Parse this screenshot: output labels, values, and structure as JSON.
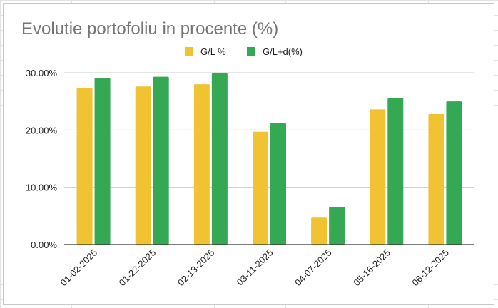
{
  "chart_data": {
    "type": "bar",
    "title": "Evolutie portofoliu in procente (%)",
    "categories": [
      "01-02-2025",
      "01-22-2025",
      "02-13-2025",
      "03-11-2025",
      "04-07-2025",
      "05-16-2025",
      "06-12-2025"
    ],
    "series": [
      {
        "name": "G/L %",
        "color": "#f1c232",
        "values": [
          27.3,
          27.6,
          28.0,
          19.7,
          4.7,
          23.6,
          22.8
        ]
      },
      {
        "name": "G/L+d(%)",
        "color": "#34a853",
        "values": [
          29.1,
          29.3,
          29.9,
          21.2,
          6.6,
          25.6,
          25.0
        ]
      }
    ],
    "yticks": [
      "0.00%",
      "10.00%",
      "20.00%",
      "30.00%"
    ],
    "ylim": [
      0,
      30
    ],
    "xlabel": "",
    "ylabel": "",
    "legend": "top-center",
    "grid": true
  }
}
